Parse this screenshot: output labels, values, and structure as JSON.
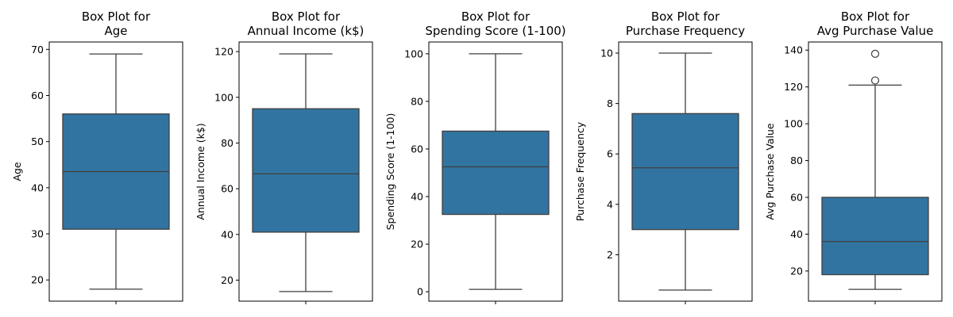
{
  "chart_data": [
    {
      "type": "box",
      "title_lines": [
        "Box Plot for",
        "Age"
      ],
      "ylabel": "Age",
      "xlabel": "",
      "ylim": [
        15.4,
        71.6
      ],
      "yticks": [
        20,
        30,
        40,
        50,
        60,
        70
      ],
      "box": {
        "min": 18,
        "q1": 31,
        "median": 43.5,
        "q3": 56,
        "max": 69,
        "outliers": []
      },
      "color": "#3274a1",
      "grid": false
    },
    {
      "type": "box",
      "title_lines": [
        "Box Plot for",
        "Annual Income (k$)"
      ],
      "ylabel": "Annual Income (k$)",
      "xlabel": "",
      "ylim": [
        10.8,
        124.2
      ],
      "yticks": [
        20,
        40,
        60,
        80,
        100,
        120
      ],
      "box": {
        "min": 15,
        "q1": 41,
        "median": 66.5,
        "q3": 95,
        "max": 119,
        "outliers": []
      },
      "color": "#3274a1",
      "grid": false
    },
    {
      "type": "box",
      "title_lines": [
        "Box Plot for",
        "Spending Score (1-100)"
      ],
      "ylabel": "Spending Score (1-100)",
      "xlabel": "",
      "ylim": [
        -3.95,
        104.95
      ],
      "yticks": [
        0,
        20,
        40,
        60,
        80,
        100
      ],
      "box": {
        "min": 1,
        "q1": 32.5,
        "median": 52.5,
        "q3": 67.5,
        "max": 100,
        "outliers": []
      },
      "color": "#3274a1",
      "grid": false
    },
    {
      "type": "box",
      "title_lines": [
        "Box Plot for",
        "Purchase Frequency"
      ],
      "ylabel": "Purchase Frequency",
      "xlabel": "",
      "ylim": [
        0.16,
        10.44
      ],
      "yticks": [
        2,
        4,
        6,
        8,
        10
      ],
      "box": {
        "min": 0.6,
        "q1": 3.0,
        "median": 5.45,
        "q3": 7.6,
        "max": 10,
        "outliers": []
      },
      "color": "#3274a1",
      "grid": false
    },
    {
      "type": "box",
      "title_lines": [
        "Box Plot for",
        "Avg Purchase Value"
      ],
      "ylabel": "Avg Purchase Value",
      "xlabel": "",
      "ylim": [
        3.6,
        144.4
      ],
      "yticks": [
        20,
        40,
        60,
        80,
        100,
        120,
        140
      ],
      "box": {
        "min": 10,
        "q1": 18,
        "median": 36,
        "q3": 60,
        "max": 121,
        "outliers": [
          123.5,
          138
        ]
      },
      "color": "#3274a1",
      "grid": false
    }
  ]
}
